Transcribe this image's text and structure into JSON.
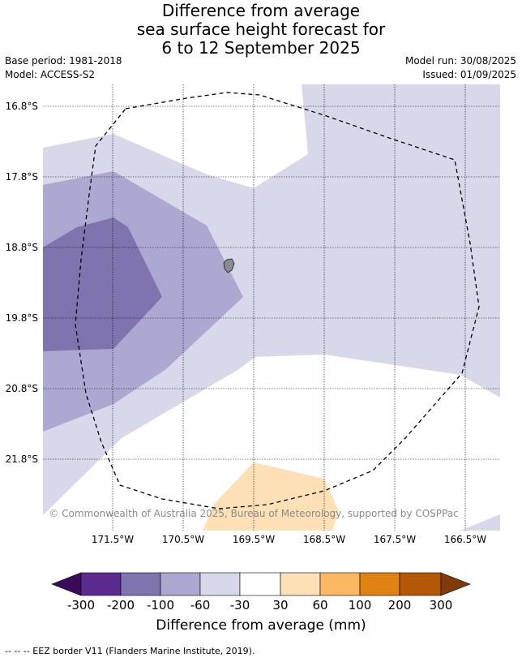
{
  "title": {
    "line1": "Difference from average",
    "line2": "sea surface height forecast for",
    "line3": "6 to 12 September 2025"
  },
  "meta": {
    "base_period": "Base period: 1981-2018",
    "model": "Model: ACCESS-S2",
    "model_run": "Model run: 30/08/2025",
    "issued": "Issued: 01/09/2025"
  },
  "map": {
    "lat_labels": [
      "16.8°S",
      "17.8°S",
      "18.8°S",
      "19.8°S",
      "20.8°S",
      "21.8°S"
    ],
    "lon_labels": [
      "171.5°W",
      "170.5°W",
      "169.5°W",
      "168.5°W",
      "167.5°W",
      "166.5°W"
    ],
    "copyright": "© Commonwealth of Australia 2025, Bureau of Meteorology, supported by COSPPac",
    "colors": {
      "neg_300": "#3b0a5a",
      "neg_200": "#5b2a8e",
      "neg_100": "#7f74ae",
      "neg_60": "#ada8d1",
      "neg_30": "#d7d8ea",
      "neutral": "#ffffff",
      "pos_30": "#fde0b5",
      "pos_60": "#fdb863",
      "pos_100": "#e08214",
      "pos_200": "#b35806",
      "pos_300": "#7f3b08",
      "land": "#8c8c8c"
    }
  },
  "colorbar": {
    "tick_labels": [
      "-300",
      "-200",
      "-100",
      "-60",
      "-30",
      "30",
      "60",
      "100",
      "200",
      "300"
    ],
    "title": "Difference from average (mm)"
  },
  "footnote": "--  --  -- EEZ border V11 (Flanders Marine Institute, 2019)."
}
